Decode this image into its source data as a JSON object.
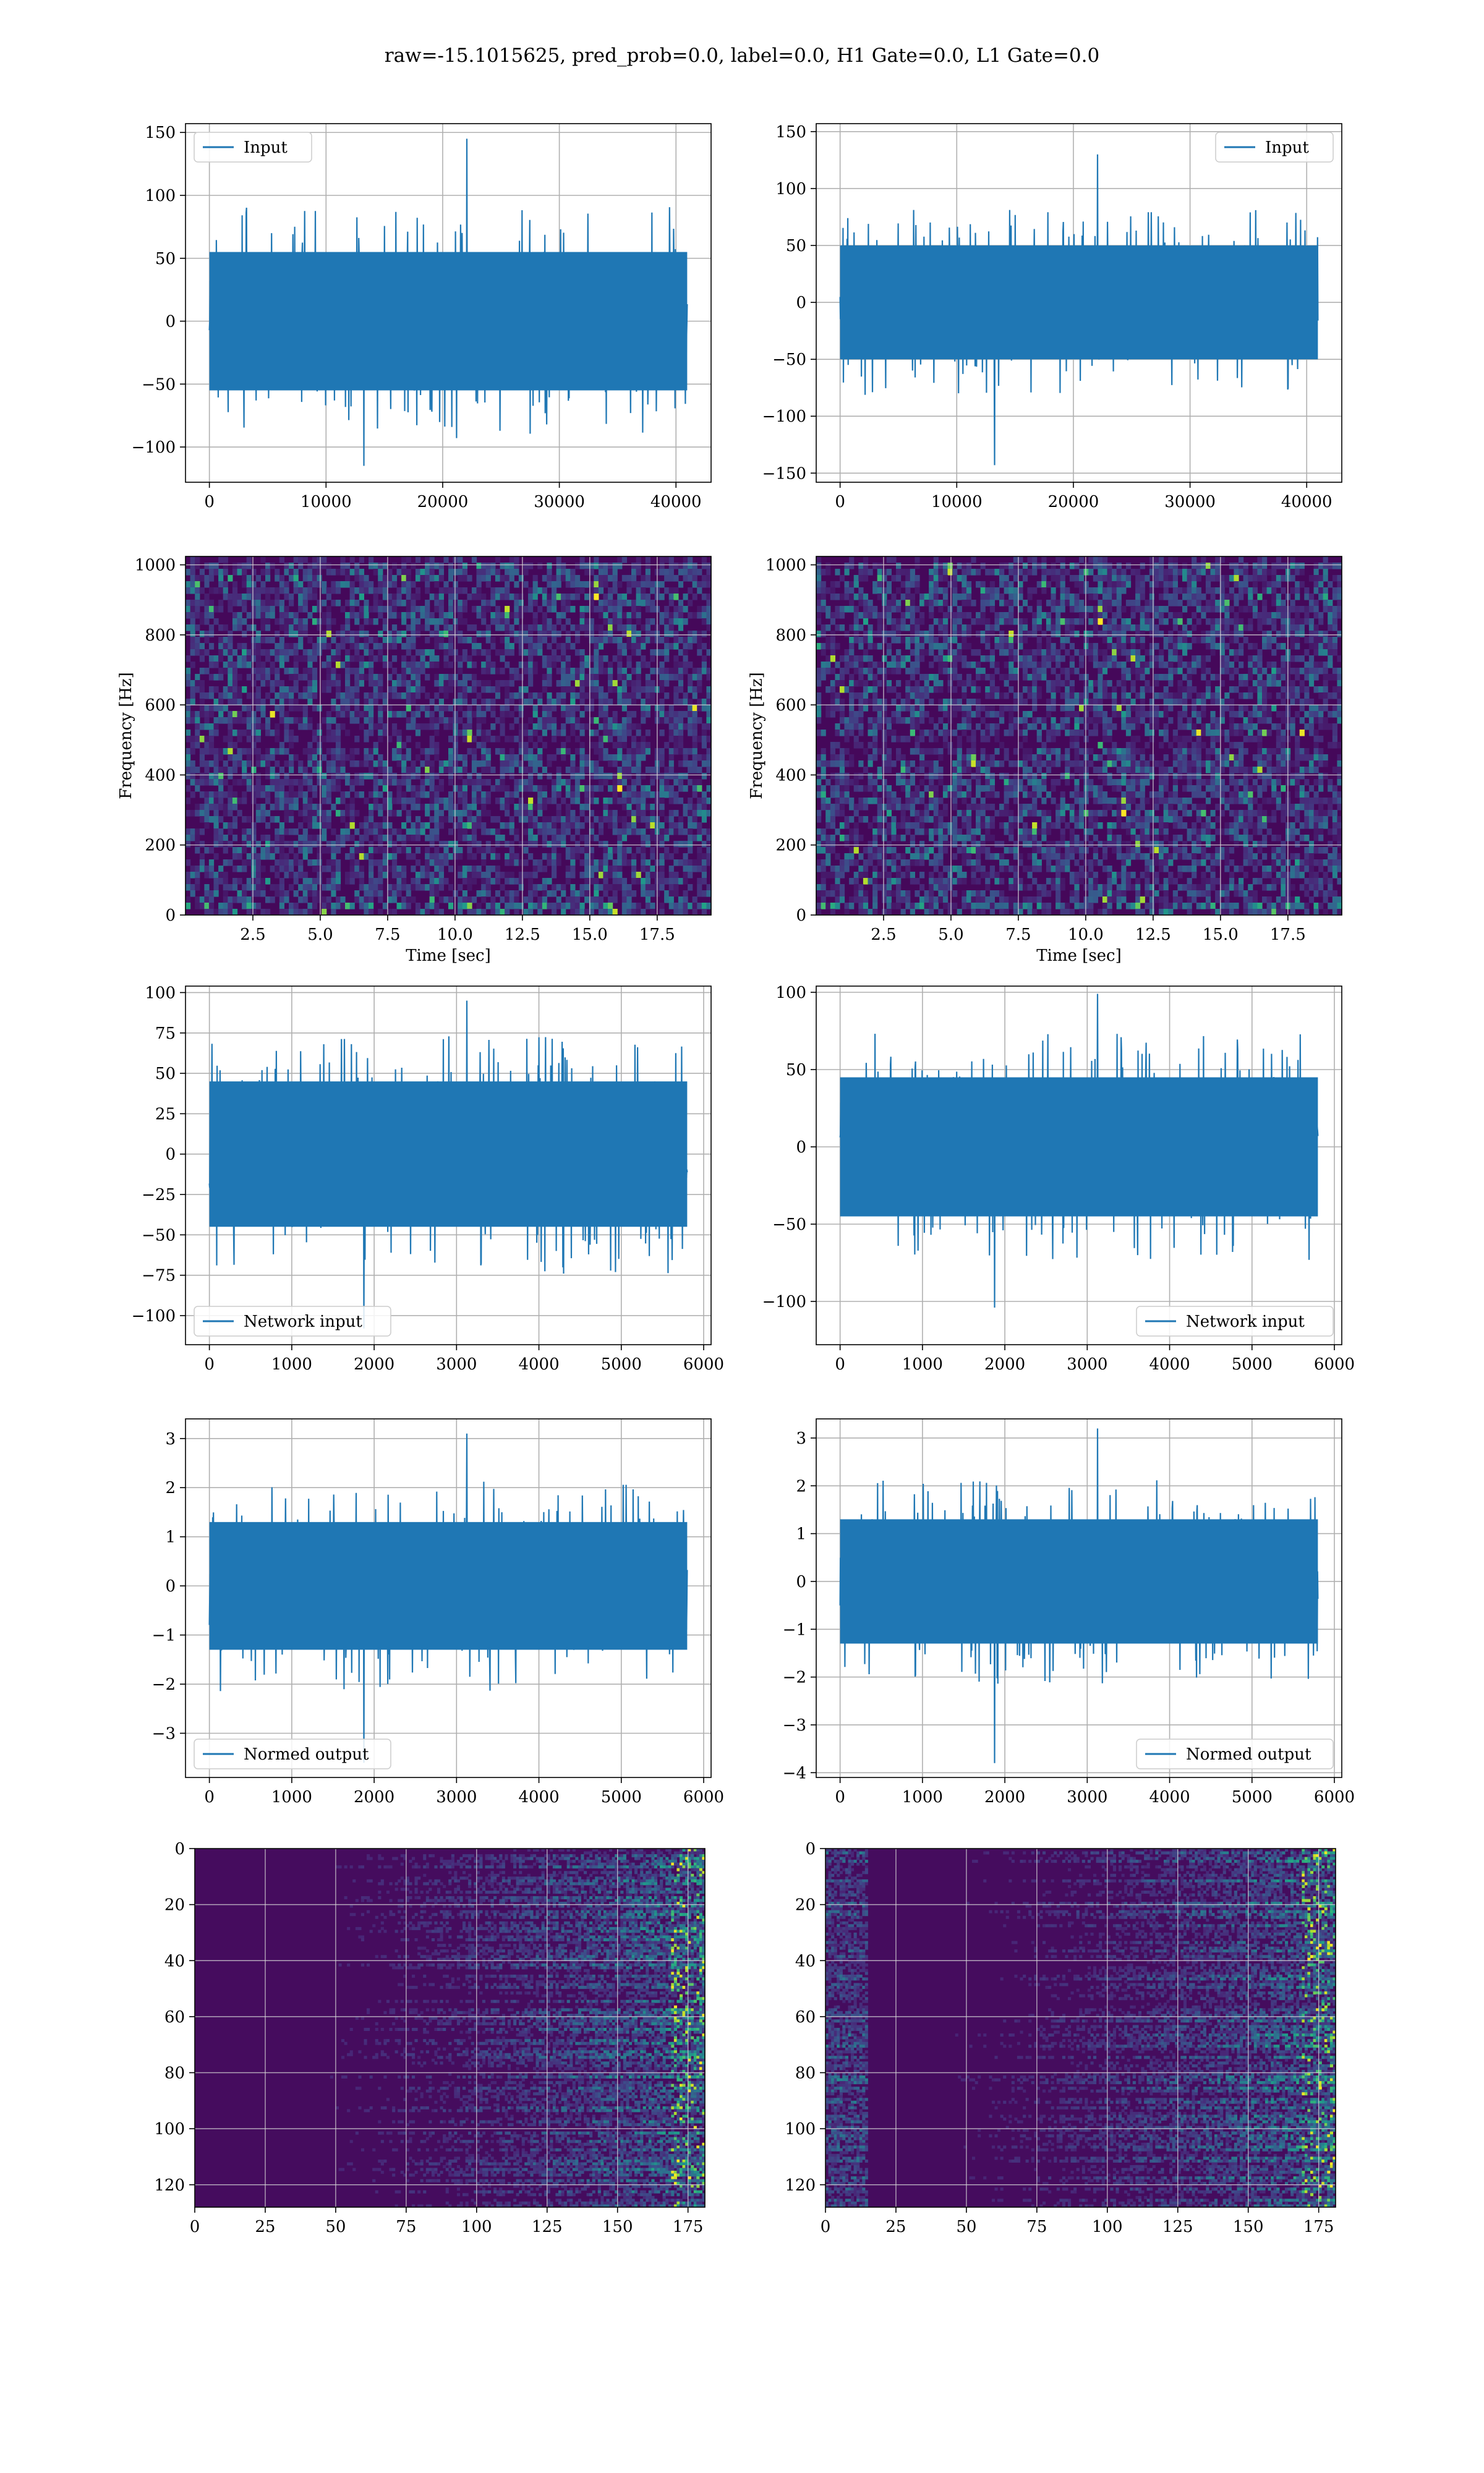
{
  "figure": {
    "title": "raw=-15.1015625, pred_prob=0.0, label=0.0, H1 Gate=0.0, L1 Gate=0.0",
    "line_color": "#1f77b4",
    "grid_color": "#b0b0b0",
    "colormap": "viridis"
  },
  "chart_data": [
    {
      "id": "input-h1",
      "type": "line",
      "series": [
        {
          "name": "Input",
          "x_range": [
            0,
            40960
          ],
          "amplitude_typical": 55,
          "peak_max": 145,
          "peak_min": -115
        }
      ],
      "xticks": [
        "0",
        "10000",
        "20000",
        "30000",
        "40000"
      ],
      "yticks": [
        "150",
        "100",
        "50",
        "0",
        "−50",
        "−100"
      ],
      "xlim": [
        -2048,
        43008
      ],
      "ylim": [
        -128,
        157
      ],
      "legend_loc": "upper left",
      "grid": true
    },
    {
      "id": "input-l1",
      "type": "line",
      "series": [
        {
          "name": "Input",
          "x_range": [
            0,
            40960
          ],
          "amplitude_typical": 50,
          "peak_max": 130,
          "peak_min": -143
        }
      ],
      "xticks": [
        "0",
        "10000",
        "20000",
        "30000",
        "40000"
      ],
      "yticks": [
        "150",
        "100",
        "50",
        "0",
        "−50",
        "−100",
        "−150"
      ],
      "xlim": [
        -2048,
        43008
      ],
      "ylim": [
        -158,
        157
      ],
      "legend_loc": "upper right",
      "grid": true
    },
    {
      "id": "spectrogram-h1",
      "type": "heatmap",
      "xlabel": "Time [sec]",
      "ylabel": "Frequency [Hz]",
      "xticks": [
        "2.5",
        "5.0",
        "7.5",
        "10.0",
        "12.5",
        "15.0",
        "17.5"
      ],
      "yticks": [
        "1000",
        "800",
        "600",
        "400",
        "200",
        "0"
      ],
      "xlim": [
        0,
        19.5
      ],
      "ylim": [
        0,
        1024
      ],
      "grid": true
    },
    {
      "id": "spectrogram-l1",
      "type": "heatmap",
      "xlabel": "Time [sec]",
      "ylabel": "Frequency [Hz]",
      "xticks": [
        "2.5",
        "5.0",
        "7.5",
        "10.0",
        "12.5",
        "15.0",
        "17.5"
      ],
      "yticks": [
        "1000",
        "800",
        "600",
        "400",
        "200",
        "0"
      ],
      "xlim": [
        0,
        19.5
      ],
      "ylim": [
        0,
        1024
      ],
      "grid": true
    },
    {
      "id": "network-input-h1",
      "type": "line",
      "series": [
        {
          "name": "Network input",
          "x_range": [
            0,
            5800
          ],
          "amplitude_typical": 45,
          "peak_max": 95,
          "peak_min": -108
        }
      ],
      "xticks": [
        "0",
        "1000",
        "2000",
        "3000",
        "4000",
        "5000",
        "6000"
      ],
      "yticks": [
        "100",
        "75",
        "50",
        "25",
        "0",
        "−25",
        "−50",
        "−75",
        "−100"
      ],
      "xlim": [
        -290,
        6090
      ],
      "ylim": [
        -118,
        104
      ],
      "legend_loc": "lower left",
      "grid": true
    },
    {
      "id": "network-input-l1",
      "type": "line",
      "series": [
        {
          "name": "Network input",
          "x_range": [
            0,
            5800
          ],
          "amplitude_typical": 45,
          "peak_max": 99,
          "peak_min": -104
        }
      ],
      "xticks": [
        "0",
        "1000",
        "2000",
        "3000",
        "4000",
        "5000",
        "6000"
      ],
      "yticks": [
        "100",
        "50",
        "0",
        "−50",
        "−100"
      ],
      "xlim": [
        -290,
        6090
      ],
      "ylim": [
        -128,
        104
      ],
      "legend_loc": "lower right",
      "grid": true
    },
    {
      "id": "normed-output-h1",
      "type": "line",
      "series": [
        {
          "name": "Normed output",
          "x_range": [
            0,
            5800
          ],
          "amplitude_typical": 1.3,
          "peak_max": 3.1,
          "peak_min": -3.6
        }
      ],
      "xticks": [
        "0",
        "1000",
        "2000",
        "3000",
        "4000",
        "5000",
        "6000"
      ],
      "yticks": [
        "3",
        "2",
        "1",
        "0",
        "−1",
        "−2",
        "−3"
      ],
      "xlim": [
        -290,
        6090
      ],
      "ylim": [
        -3.9,
        3.4
      ],
      "legend_loc": "lower left",
      "grid": true
    },
    {
      "id": "normed-output-l1",
      "type": "line",
      "series": [
        {
          "name": "Normed output",
          "x_range": [
            0,
            5800
          ],
          "amplitude_typical": 1.3,
          "peak_max": 3.2,
          "peak_min": -3.8
        }
      ],
      "xticks": [
        "0",
        "1000",
        "2000",
        "3000",
        "4000",
        "5000",
        "6000"
      ],
      "yticks": [
        "3",
        "2",
        "1",
        "0",
        "−1",
        "−2",
        "−3",
        "−4"
      ],
      "xlim": [
        -290,
        6090
      ],
      "ylim": [
        -4.1,
        3.4
      ],
      "legend_loc": "lower right",
      "grid": true
    },
    {
      "id": "feature-map-h1",
      "type": "heatmap",
      "rows": 128,
      "cols": 181,
      "xticks": [
        "0",
        "25",
        "50",
        "75",
        "100",
        "125",
        "150",
        "175"
      ],
      "yticks": [
        "0",
        "20",
        "40",
        "60",
        "80",
        "100",
        "120"
      ],
      "xlim": [
        0,
        181
      ],
      "ylim": [
        0,
        128
      ],
      "grid": true
    },
    {
      "id": "feature-map-l1",
      "type": "heatmap",
      "rows": 128,
      "cols": 181,
      "xticks": [
        "0",
        "25",
        "50",
        "75",
        "100",
        "125",
        "150",
        "175"
      ],
      "yticks": [
        "0",
        "20",
        "40",
        "60",
        "80",
        "100",
        "120"
      ],
      "xlim": [
        0,
        181
      ],
      "ylim": [
        0,
        128
      ],
      "grid": true
    }
  ]
}
